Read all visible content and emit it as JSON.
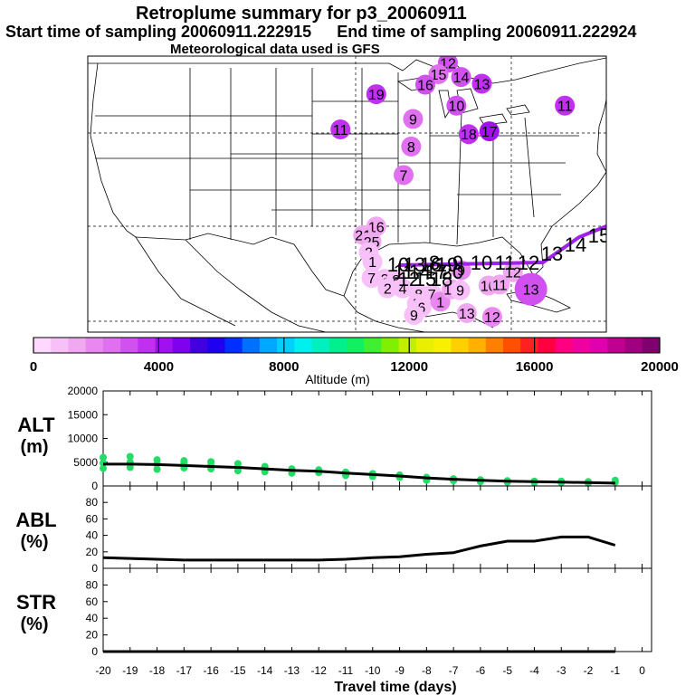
{
  "title": {
    "line1": "Retroplume summary for p3_20060911",
    "start_label": "Start time of sampling 20060911.222915",
    "end_label": "End time of sampling 20060911.222924",
    "line3": "Meteorological data used is GFS"
  },
  "map": {
    "region": "Continental United States and Gulf of Mexico",
    "plume_labels": [
      {
        "label": "12",
        "lon": -86.8,
        "lat": 49.3,
        "alt_m": 3200
      },
      {
        "label": "15",
        "lon": -87.8,
        "lat": 48.1,
        "alt_m": 2700
      },
      {
        "label": "14",
        "lon": -85.4,
        "lat": 47.8,
        "alt_m": 3300
      },
      {
        "label": "13",
        "lon": -83.2,
        "lat": 47.1,
        "alt_m": 3800
      },
      {
        "label": "16",
        "lon": -89.2,
        "lat": 47.0,
        "alt_m": 3000
      },
      {
        "label": "19",
        "lon": -94.4,
        "lat": 46.0,
        "alt_m": 3600
      },
      {
        "label": "10",
        "lon": -85.9,
        "lat": 44.8,
        "alt_m": 3300
      },
      {
        "label": "11",
        "lon": -74.4,
        "lat": 44.8,
        "alt_m": 3600
      },
      {
        "label": "9",
        "lon": -90.5,
        "lat": 43.4,
        "alt_m": 2700
      },
      {
        "label": "11",
        "lon": -98.2,
        "lat": 42.3,
        "alt_m": 3700
      },
      {
        "label": "18",
        "lon": -84.6,
        "lat": 41.8,
        "alt_m": 3800
      },
      {
        "label": "17",
        "lon": -82.4,
        "lat": 42.1,
        "alt_m": 4000
      },
      {
        "label": "8",
        "lon": -90.7,
        "lat": 40.5,
        "alt_m": 2500
      },
      {
        "label": "7",
        "lon": -91.5,
        "lat": 37.5,
        "alt_m": 2400
      },
      {
        "label": "16",
        "lon": -94.4,
        "lat": 32.1,
        "alt_m": 1400
      },
      {
        "label": "21",
        "lon": -95.8,
        "lat": 31.2,
        "alt_m": 1300
      },
      {
        "label": "25",
        "lon": -94.9,
        "lat": 30.5,
        "alt_m": 1200
      },
      {
        "label": "2",
        "lon": -95.2,
        "lat": 29.4,
        "alt_m": 1100
      },
      {
        "label": "1",
        "lon": -94.8,
        "lat": 28.4,
        "alt_m": 1000
      },
      {
        "label": "7",
        "lon": -94.9,
        "lat": 26.7,
        "alt_m": 900
      },
      {
        "label": "3",
        "lon": -93.5,
        "lat": 26.6,
        "alt_m": 800
      },
      {
        "label": "8",
        "lon": -92.3,
        "lat": 26.5,
        "alt_m": 800
      },
      {
        "label": "4",
        "lon": -91.6,
        "lat": 25.6,
        "alt_m": 800
      },
      {
        "label": "2",
        "lon": -93.2,
        "lat": 25.6,
        "alt_m": 700
      },
      {
        "label": "8",
        "lon": -89.9,
        "lat": 25.0,
        "alt_m": 900
      },
      {
        "label": "7",
        "lon": -88.5,
        "lat": 25.0,
        "alt_m": 900
      },
      {
        "label": "5",
        "lon": -90.1,
        "lat": 24.0,
        "alt_m": 900
      },
      {
        "label": "6",
        "lon": -89.6,
        "lat": 23.6,
        "alt_m": 1000
      },
      {
        "label": "9",
        "lon": -90.4,
        "lat": 22.8,
        "alt_m": 1000
      },
      {
        "label": "1",
        "lon": -87.6,
        "lat": 24.2,
        "alt_m": 1700
      },
      {
        "label": "10",
        "lon": -86.4,
        "lat": 25.5,
        "alt_m": 1200
      },
      {
        "label": "9",
        "lon": -85.5,
        "lat": 25.4,
        "alt_m": 1100
      },
      {
        "label": "13",
        "lon": -84.8,
        "lat": 23.0,
        "alt_m": 1400
      },
      {
        "label": "9",
        "lon": -85.4,
        "lat": 27.5,
        "alt_m": 2100
      },
      {
        "label": "10",
        "lon": -82.5,
        "lat": 25.9,
        "alt_m": 1300
      },
      {
        "label": "11",
        "lon": -81.3,
        "lat": 26.0,
        "alt_m": 1400
      },
      {
        "label": "12",
        "lon": -79.9,
        "lat": 27.3,
        "alt_m": 1500
      },
      {
        "label": "13",
        "lon": -78.0,
        "lat": 25.5,
        "alt_m": 2900
      },
      {
        "label": "12",
        "lon": -82.1,
        "lat": 22.6,
        "alt_m": 1700
      }
    ],
    "trajectory_labels": [
      "10",
      "11",
      "12",
      "13",
      "14",
      "15",
      "16",
      "17",
      "18",
      "19",
      "20",
      "8",
      "9",
      "10",
      "11",
      "12",
      "13",
      "14",
      "15"
    ]
  },
  "colorbar": {
    "title": "Altitude (m)",
    "tick_labels": [
      "0",
      "4000",
      "8000",
      "12000",
      "16000",
      "20000"
    ],
    "min": 0,
    "max": 20000,
    "colors": [
      "#ffd8ff",
      "#f8c0f8",
      "#f0a8f0",
      "#e888f0",
      "#e070f0",
      "#d050f0",
      "#c030f0",
      "#a010f0",
      "#8000f0",
      "#4000e0",
      "#2000f0",
      "#0030ff",
      "#0070ff",
      "#00a8ff",
      "#00d0ff",
      "#00f0f0",
      "#00f0c0",
      "#00f090",
      "#10f060",
      "#40f030",
      "#80f000",
      "#c0f000",
      "#e8f000",
      "#f8f000",
      "#ffd000",
      "#ffb000",
      "#ff8000",
      "#ff5000",
      "#ff2020",
      "#ff0040",
      "#ff0080",
      "#f000a0",
      "#e000b0",
      "#c00090",
      "#a00080",
      "#800070"
    ]
  },
  "chart_data": [
    {
      "type": "line",
      "panel_label_1": "ALT",
      "panel_label_2": "(m)",
      "x": [
        -20,
        -19,
        -18,
        -17,
        -16,
        -15,
        -14,
        -13,
        -12,
        -11,
        -10,
        -9,
        -8,
        -7,
        -6,
        -5,
        -4,
        -3,
        -2,
        -1
      ],
      "series": [
        {
          "name": "mean altitude",
          "values": [
            4600,
            4600,
            4500,
            4300,
            4100,
            3900,
            3600,
            3300,
            3100,
            2700,
            2400,
            2100,
            1700,
            1400,
            1200,
            1000,
            900,
            800,
            700,
            600
          ]
        }
      ],
      "ylim": [
        0,
        20000
      ],
      "yticks": [
        "20000",
        "15000",
        "10000",
        "5000",
        "0"
      ],
      "scatter": [
        {
          "x": -20,
          "y": 6000
        },
        {
          "x": -20,
          "y": 4800
        },
        {
          "x": -20,
          "y": 3700
        },
        {
          "x": -19,
          "y": 6200
        },
        {
          "x": -19,
          "y": 5000
        },
        {
          "x": -19,
          "y": 3900
        },
        {
          "x": -18,
          "y": 5500
        },
        {
          "x": -18,
          "y": 4600
        },
        {
          "x": -18,
          "y": 3500
        },
        {
          "x": -17,
          "y": 5300
        },
        {
          "x": -17,
          "y": 4800
        },
        {
          "x": -17,
          "y": 3800
        },
        {
          "x": -16,
          "y": 5100
        },
        {
          "x": -16,
          "y": 4300
        },
        {
          "x": -16,
          "y": 3600
        },
        {
          "x": -15,
          "y": 4700
        },
        {
          "x": -15,
          "y": 3900
        },
        {
          "x": -15,
          "y": 3200
        },
        {
          "x": -14,
          "y": 4100
        },
        {
          "x": -14,
          "y": 3400
        },
        {
          "x": -14,
          "y": 3000
        },
        {
          "x": -13,
          "y": 3600
        },
        {
          "x": -13,
          "y": 2700
        },
        {
          "x": -12,
          "y": 3400
        },
        {
          "x": -12,
          "y": 2800
        },
        {
          "x": -11,
          "y": 2900
        },
        {
          "x": -11,
          "y": 2200
        },
        {
          "x": -10,
          "y": 2600
        },
        {
          "x": -10,
          "y": 2000
        },
        {
          "x": -9,
          "y": 2300
        },
        {
          "x": -9,
          "y": 1800
        },
        {
          "x": -8,
          "y": 1800
        },
        {
          "x": -8,
          "y": 1200
        },
        {
          "x": -7,
          "y": 1500
        },
        {
          "x": -7,
          "y": 1100
        },
        {
          "x": -6,
          "y": 1300
        },
        {
          "x": -6,
          "y": 900
        },
        {
          "x": -5,
          "y": 1100
        },
        {
          "x": -5,
          "y": 800
        },
        {
          "x": -4,
          "y": 1000
        },
        {
          "x": -4,
          "y": 700
        },
        {
          "x": -3,
          "y": 1000
        },
        {
          "x": -3,
          "y": 700
        },
        {
          "x": -2,
          "y": 900
        },
        {
          "x": -2,
          "y": 600
        },
        {
          "x": -1,
          "y": 1200
        },
        {
          "x": -1,
          "y": 800
        }
      ]
    },
    {
      "type": "line",
      "panel_label_1": "ABL",
      "panel_label_2": "(%)",
      "x": [
        -20,
        -19,
        -18,
        -17,
        -16,
        -15,
        -14,
        -13,
        -12,
        -11,
        -10,
        -9,
        -8,
        -7,
        -6,
        -5,
        -4,
        -3,
        -2,
        -1
      ],
      "series": [
        {
          "name": "fraction in ABL",
          "values": [
            13,
            12,
            11,
            10,
            10,
            10,
            10,
            10,
            10,
            11,
            13,
            14,
            17,
            19,
            27,
            33,
            33,
            38,
            38,
            28
          ]
        }
      ],
      "ylim": [
        0,
        100
      ],
      "yticks": [
        "80",
        "60",
        "40",
        "20",
        "0"
      ]
    },
    {
      "type": "line",
      "panel_label_1": "STR",
      "panel_label_2": "(%)",
      "x": [
        -20,
        -19,
        -18,
        -17,
        -16,
        -15,
        -14,
        -13,
        -12,
        -11,
        -10,
        -9,
        -8,
        -7,
        -6,
        -5,
        -4,
        -3,
        -2,
        -1
      ],
      "series": [
        {
          "name": "fraction in stratosphere",
          "values": [
            0,
            0,
            0,
            0,
            0,
            0,
            0,
            0,
            0,
            0,
            0,
            0,
            0,
            0,
            0,
            0,
            0,
            0,
            0,
            0
          ]
        }
      ],
      "ylim": [
        0,
        100
      ],
      "yticks": [
        "80",
        "60",
        "40",
        "20",
        "0"
      ],
      "xlabel": "Travel time (days)",
      "xtick_labels": [
        "-20",
        "-19",
        "-18",
        "-17",
        "-16",
        "-15",
        "-14",
        "-13",
        "-12",
        "-11",
        "-10",
        "-9",
        "-8",
        "-7",
        "-6",
        "-5",
        "-4",
        "-3",
        "-2",
        "-1",
        "0"
      ]
    }
  ]
}
